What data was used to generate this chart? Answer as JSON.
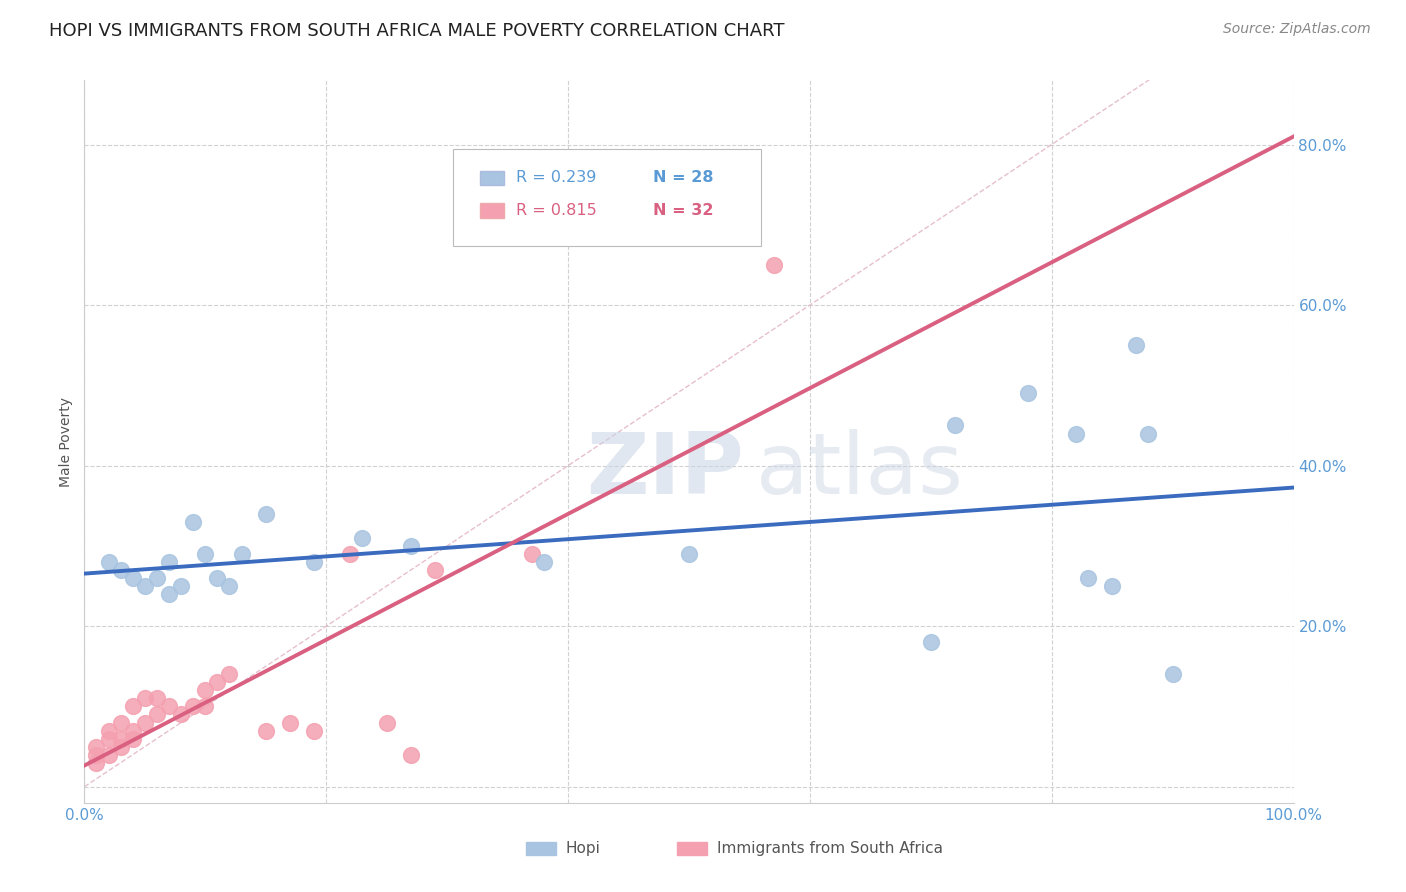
{
  "title": "HOPI VS IMMIGRANTS FROM SOUTH AFRICA MALE POVERTY CORRELATION CHART",
  "source": "Source: ZipAtlas.com",
  "ylabel": "Male Poverty",
  "watermark_zip": "ZIP",
  "watermark_atlas": "atlas",
  "xlim": [
    0.0,
    1.0
  ],
  "ylim": [
    -0.02,
    0.88
  ],
  "xticks": [
    0.0,
    0.2,
    0.4,
    0.6,
    0.8,
    1.0
  ],
  "yticks": [
    0.0,
    0.2,
    0.4,
    0.6,
    0.8
  ],
  "ytick_labels": [
    "",
    "20.0%",
    "40.0%",
    "60.0%",
    "80.0%"
  ],
  "xtick_labels": [
    "0.0%",
    "",
    "",
    "",
    "",
    "100.0%"
  ],
  "grid_color": "#cccccc",
  "background_color": "#ffffff",
  "hopi_color": "#a8c4e0",
  "immigrants_color": "#f4a0b0",
  "hopi_R": 0.239,
  "hopi_N": 28,
  "immigrants_R": 0.815,
  "immigrants_N": 32,
  "hopi_line_color": "#3a6bbf",
  "immigrants_line_color": "#d96080",
  "ref_line_color": "#e0b0c0",
  "hopi_x": [
    0.02,
    0.03,
    0.04,
    0.05,
    0.06,
    0.07,
    0.07,
    0.08,
    0.09,
    0.1,
    0.11,
    0.12,
    0.13,
    0.15,
    0.19,
    0.23,
    0.27,
    0.38,
    0.5,
    0.7,
    0.72,
    0.78,
    0.82,
    0.83,
    0.85,
    0.87,
    0.88,
    0.9
  ],
  "hopi_y": [
    0.28,
    0.27,
    0.26,
    0.25,
    0.26,
    0.24,
    0.28,
    0.25,
    0.33,
    0.29,
    0.26,
    0.25,
    0.29,
    0.34,
    0.28,
    0.31,
    0.3,
    0.28,
    0.29,
    0.18,
    0.45,
    0.49,
    0.44,
    0.26,
    0.25,
    0.55,
    0.44,
    0.14
  ],
  "immigrants_x": [
    0.01,
    0.01,
    0.01,
    0.02,
    0.02,
    0.02,
    0.03,
    0.03,
    0.03,
    0.04,
    0.04,
    0.04,
    0.05,
    0.05,
    0.06,
    0.06,
    0.07,
    0.08,
    0.09,
    0.1,
    0.1,
    0.11,
    0.12,
    0.15,
    0.17,
    0.19,
    0.22,
    0.25,
    0.27,
    0.29,
    0.37,
    0.57
  ],
  "immigrants_y": [
    0.03,
    0.04,
    0.05,
    0.04,
    0.06,
    0.07,
    0.05,
    0.06,
    0.08,
    0.06,
    0.07,
    0.1,
    0.08,
    0.11,
    0.09,
    0.11,
    0.1,
    0.09,
    0.1,
    0.1,
    0.12,
    0.13,
    0.14,
    0.07,
    0.08,
    0.07,
    0.29,
    0.08,
    0.04,
    0.27,
    0.29,
    0.65
  ],
  "title_fontsize": 13,
  "axis_label_fontsize": 10,
  "tick_fontsize": 11,
  "source_fontsize": 10
}
